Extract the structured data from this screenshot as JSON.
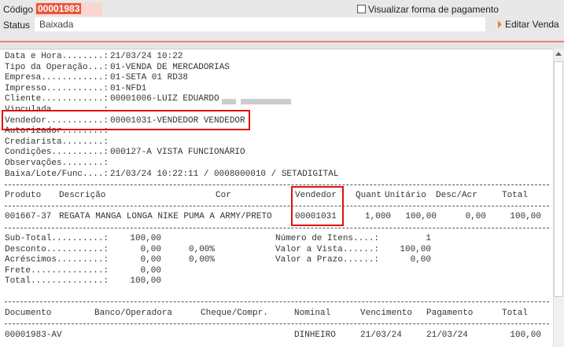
{
  "header": {
    "codigo_label": "Código",
    "codigo_value": "00001983",
    "status_label": "Status",
    "status_value": "Baixada",
    "visualizar_label": "Visualizar forma de pagamento",
    "visualizar_checked": false,
    "editar_label": "Editar Venda"
  },
  "info": [
    {
      "label": "Data e Hora........: ",
      "value": "21/03/24 10:22"
    },
    {
      "label": "Tipo da Operação...: ",
      "value": "01-VENDA DE MERCADORIAS"
    },
    {
      "label": "Empresa............: ",
      "value": "01-SETA 01 RD38"
    },
    {
      "label": "Impresso...........: ",
      "value": "01-NFD1"
    },
    {
      "label": "Cliente............: ",
      "value": "00001006-LUIZ EDUARDO"
    },
    {
      "label": "Vinculada..........: ",
      "value": ""
    },
    {
      "label": "Vendedor...........: ",
      "value": "00001031-VENDEDOR VENDEDOR"
    },
    {
      "label": "Autorizador........: ",
      "value": ""
    },
    {
      "label": "Crediarista........: ",
      "value": ""
    },
    {
      "label": "Condições..........: ",
      "value": "000127-A VISTA FUNCIONÁRIO"
    },
    {
      "label": "Observações........: ",
      "value": ""
    },
    {
      "label": "Baixa/Lote/Func....: ",
      "value": "21/03/24 10:22:11 / 0008000010 / SETADIGITAL"
    }
  ],
  "items": {
    "headers": [
      "Produto",
      "Descrição",
      "Cor",
      "Vendedor",
      "Quant",
      "Unitário",
      "Desc/Acr",
      "Total"
    ],
    "rows": [
      {
        "produto": "001667-37",
        "descricao": "REGATA MANGA LONGA NIKE PUMA A ARMY/PRETO",
        "cor": "",
        "vendedor": "00001031",
        "quant": "1,000",
        "unitario": "100,00",
        "desc_acr": "0,00",
        "total": "100,00"
      }
    ]
  },
  "totals": {
    "subtotal": {
      "label": "Sub-Total..........:",
      "value": "100,00"
    },
    "desconto": {
      "label": "Desconto...........:",
      "value": "0,00",
      "pct": "0,00%"
    },
    "acrescimos": {
      "label": "Acréscimos.........:",
      "value": "0,00",
      "pct": "0,00%"
    },
    "frete": {
      "label": "Frete..............:",
      "value": "0,00"
    },
    "total": {
      "label": "Total..............:",
      "value": "100,00"
    },
    "num_itens": {
      "label": "Número de Itens....:",
      "value": "1"
    },
    "valor_vista": {
      "label": "Valor a Vista......:",
      "value": "100,00"
    },
    "valor_prazo": {
      "label": "Valor a Prazo......:",
      "value": "0,00"
    }
  },
  "payments": {
    "headers": [
      "Documento",
      "Banco/Operadora",
      "Cheque/Compr.",
      "Nominal",
      "Vencimento",
      "Pagamento",
      "Total"
    ],
    "rows": [
      {
        "documento": "00001983-AV",
        "banco": "",
        "cheque": "",
        "nominal": "DINHEIRO",
        "vencimento": "21/03/24",
        "pagamento": "21/03/24",
        "total": "100,00"
      }
    ]
  },
  "colors": {
    "accent": "#e8553c",
    "highlight": "#e01010"
  }
}
